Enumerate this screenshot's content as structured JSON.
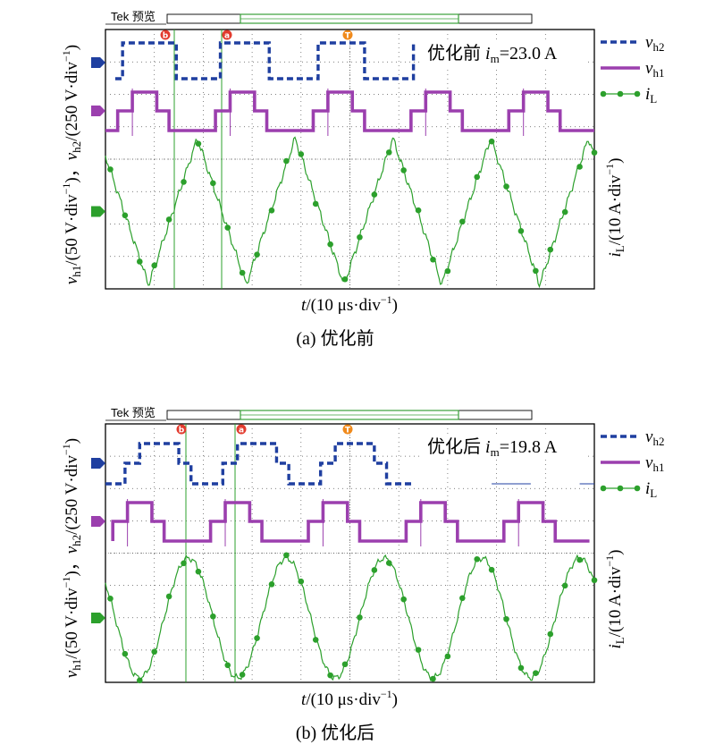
{
  "chart_data": [
    {
      "type": "line",
      "caption": "(a) 优化前",
      "header": "Tek 预览",
      "annotation": {
        "prefix": "优化前 ",
        "var": "i",
        "sub": "m",
        "value": "=23.0 A"
      },
      "xlabel": {
        "var": "t",
        "rest": "/(10 μs·div",
        "sup": "−1",
        "close": ")"
      },
      "ylabel_left": {
        "v1": "v",
        "s1": "h1",
        "r1": "/(50 V·div",
        "sup1": "−1",
        "c1": ")，",
        "v2": "v",
        "s2": "h2",
        "r2": "/(250 V·div",
        "sup2": "−1",
        "c2": ")"
      },
      "ylabel_right": {
        "v": "i",
        "s": "L",
        "r": "/(10 A·div",
        "sup": "−1",
        "c": ")"
      },
      "markers": [
        "b",
        "a",
        "T"
      ],
      "series": [
        {
          "var": "v",
          "sub": "h2",
          "color": "#1f3fa0",
          "style": "dashed",
          "period_div": 2.0,
          "shape": "two-level square"
        },
        {
          "var": "v",
          "sub": "h1",
          "color": "#9b3fae",
          "style": "solid",
          "period_div": 2.0,
          "shape": "three-level stepped"
        },
        {
          "var": "i",
          "sub": "L",
          "color": "#2ca02c",
          "style": "line with circle markers",
          "period_div": 2.0,
          "shape": "triangular"
        }
      ]
    },
    {
      "type": "line",
      "caption": "(b) 优化后",
      "header": "Tek 预览",
      "annotation": {
        "prefix": "优化后 ",
        "var": "i",
        "sub": "m",
        "value": "=19.8 A"
      },
      "xlabel": {
        "var": "t",
        "rest": "/(10 μs·div",
        "sup": "−1",
        "close": ")"
      },
      "ylabel_left": {
        "v1": "v",
        "s1": "h1",
        "r1": "/(50 V·div",
        "sup1": "−1",
        "c1": ")，",
        "v2": "v",
        "s2": "h2",
        "r2": "/(250 V·div",
        "sup2": "−1",
        "c2": ")"
      },
      "ylabel_right": {
        "v": "i",
        "s": "L",
        "r": "/(10 A·div",
        "sup": "−1",
        "c": ")"
      },
      "markers": [
        "b",
        "a",
        "T"
      ],
      "series": [
        {
          "var": "v",
          "sub": "h2",
          "color": "#1f3fa0",
          "style": "dashed",
          "period_div": 2.0,
          "shape": "three-level stepped"
        },
        {
          "var": "v",
          "sub": "h1",
          "color": "#9b3fae",
          "style": "solid",
          "period_div": 2.0,
          "shape": "three-level stepped"
        },
        {
          "var": "i",
          "sub": "L",
          "color": "#2ca02c",
          "style": "line with circle markers",
          "period_div": 2.0,
          "shape": "sinusoidal"
        }
      ]
    }
  ]
}
